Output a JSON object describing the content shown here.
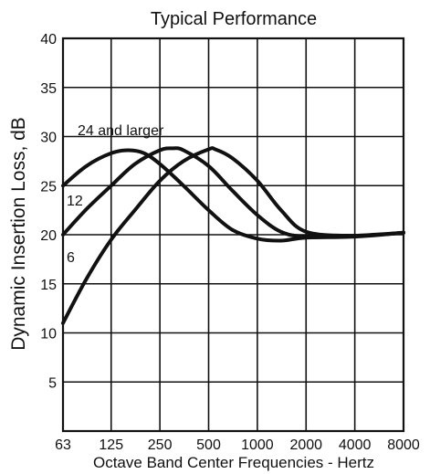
{
  "chart_data": {
    "type": "line",
    "title": "Typical Performance",
    "xlabel": "Octave Band Center Frequencies - Hertz",
    "ylabel": "Dynamic Insertion Loss, dB",
    "x": [
      63,
      125,
      250,
      500,
      1000,
      2000,
      4000,
      8000
    ],
    "x_tick_labels": [
      "63",
      "125",
      "250",
      "500",
      "1000",
      "2000",
      "4000",
      "8000"
    ],
    "x_scale": "log2",
    "ylim": [
      0,
      40
    ],
    "y_ticks": [
      5,
      10,
      15,
      20,
      25,
      30,
      35,
      40
    ],
    "y_tick_labels": [
      "5",
      "10",
      "15",
      "20",
      "25",
      "30",
      "35",
      "40"
    ],
    "grid": true,
    "legend": "none",
    "series": [
      {
        "name": "24 and larger",
        "points": [
          [
            63,
            25.0
          ],
          [
            88,
            27.0
          ],
          [
            125,
            28.3
          ],
          [
            160,
            28.6
          ],
          [
            200,
            28.3
          ],
          [
            250,
            27.2
          ],
          [
            350,
            25.0
          ],
          [
            500,
            22.5
          ],
          [
            700,
            20.5
          ],
          [
            1000,
            19.6
          ],
          [
            1400,
            19.4
          ],
          [
            2000,
            19.7
          ],
          [
            4000,
            19.8
          ],
          [
            8000,
            20.2
          ]
        ]
      },
      {
        "name": "12",
        "points": [
          [
            63,
            20.0
          ],
          [
            88,
            22.6
          ],
          [
            125,
            25.0
          ],
          [
            175,
            27.2
          ],
          [
            250,
            28.6
          ],
          [
            300,
            28.8
          ],
          [
            350,
            28.6
          ],
          [
            500,
            27.0
          ],
          [
            700,
            24.5
          ],
          [
            1000,
            22.0
          ],
          [
            1400,
            20.3
          ],
          [
            2000,
            19.8
          ],
          [
            4000,
            19.9
          ],
          [
            8000,
            20.2
          ]
        ]
      },
      {
        "name": "6",
        "points": [
          [
            63,
            11.0
          ],
          [
            88,
            15.5
          ],
          [
            125,
            19.5
          ],
          [
            175,
            22.5
          ],
          [
            250,
            25.5
          ],
          [
            350,
            27.5
          ],
          [
            500,
            28.7
          ],
          [
            550,
            28.7
          ],
          [
            700,
            27.8
          ],
          [
            1000,
            25.5
          ],
          [
            1400,
            22.5
          ],
          [
            2000,
            20.3
          ],
          [
            4000,
            19.9
          ],
          [
            8000,
            20.2
          ]
        ]
      }
    ],
    "annotations": [
      {
        "text": "24 and larger",
        "series": 0
      },
      {
        "text": "12",
        "series": 1
      },
      {
        "text": "6",
        "series": 2
      }
    ]
  }
}
